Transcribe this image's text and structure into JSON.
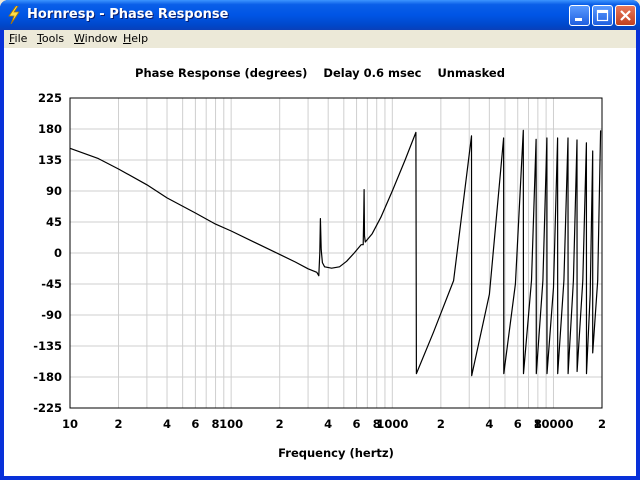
{
  "window": {
    "title": "Hornresp - Phase Response",
    "icon": "lightning-bolt-icon"
  },
  "menu": {
    "items": [
      {
        "label": "File",
        "accel": "F",
        "rest": "ile"
      },
      {
        "label": "Tools",
        "accel": "T",
        "rest": "ools"
      },
      {
        "label": "Window",
        "accel": "W",
        "rest": "indow"
      },
      {
        "label": "Help",
        "accel": "H",
        "rest": "elp"
      }
    ]
  },
  "chart_data": {
    "type": "line",
    "title": "Phase Response (degrees)    Delay 0.6 msec    Unmasked",
    "xlabel": "Frequency (hertz)",
    "ylabel": "",
    "x_scale": "log",
    "xlim": [
      10,
      20000
    ],
    "ylim": [
      -225,
      225
    ],
    "grid": true,
    "y_ticks": [
      "225",
      "180",
      "135",
      "90",
      "45",
      "0",
      "-45",
      "-90",
      "-135",
      "-180",
      "-225"
    ],
    "x_tick_labels": [
      {
        "value": 10,
        "label": "10"
      },
      {
        "value": 20,
        "label": "2"
      },
      {
        "value": 40,
        "label": "4"
      },
      {
        "value": 60,
        "label": "6"
      },
      {
        "value": 80,
        "label": "8"
      },
      {
        "value": 100,
        "label": "100"
      },
      {
        "value": 200,
        "label": "2"
      },
      {
        "value": 400,
        "label": "4"
      },
      {
        "value": 600,
        "label": "6"
      },
      {
        "value": 800,
        "label": "8"
      },
      {
        "value": 1000,
        "label": "1000"
      },
      {
        "value": 2000,
        "label": "2"
      },
      {
        "value": 4000,
        "label": "4"
      },
      {
        "value": 6000,
        "label": "6"
      },
      {
        "value": 8000,
        "label": "8"
      },
      {
        "value": 10000,
        "label": "10000"
      },
      {
        "value": 20000,
        "label": "2"
      }
    ],
    "series": [
      {
        "color": "#000000",
        "points": [
          [
            10,
            152
          ],
          [
            15,
            137
          ],
          [
            20,
            122
          ],
          [
            30,
            99
          ],
          [
            40,
            80
          ],
          [
            60,
            58
          ],
          [
            80,
            42
          ],
          [
            100,
            32
          ],
          [
            150,
            12
          ],
          [
            200,
            -2
          ],
          [
            250,
            -13
          ],
          [
            300,
            -23
          ],
          [
            340,
            -28
          ],
          [
            350,
            -33
          ],
          [
            355,
            0
          ],
          [
            358,
            50
          ],
          [
            362,
            5
          ],
          [
            368,
            -14
          ],
          [
            380,
            -20
          ],
          [
            420,
            -22
          ],
          [
            470,
            -20
          ],
          [
            520,
            -12
          ],
          [
            580,
            0
          ],
          [
            640,
            12
          ],
          [
            660,
            12
          ],
          [
            665,
            60
          ],
          [
            668,
            92
          ],
          [
            672,
            25
          ],
          [
            680,
            16
          ],
          [
            750,
            28
          ],
          [
            850,
            52
          ],
          [
            1000,
            90
          ],
          [
            1200,
            135
          ],
          [
            1400,
            175
          ],
          [
            1410,
            -175
          ],
          [
            1800,
            -115
          ],
          [
            2400,
            -40
          ],
          [
            3100,
            170
          ],
          [
            3110,
            -178
          ],
          [
            4000,
            -60
          ],
          [
            4900,
            167
          ],
          [
            4920,
            -175
          ],
          [
            5800,
            -45
          ],
          [
            6500,
            178
          ],
          [
            6520,
            -175
          ],
          [
            7300,
            -40
          ],
          [
            7800,
            165
          ],
          [
            7820,
            -175
          ],
          [
            8600,
            -40
          ],
          [
            9100,
            167
          ],
          [
            9120,
            -175
          ],
          [
            10000,
            -50
          ],
          [
            10600,
            167
          ],
          [
            10620,
            -175
          ],
          [
            11600,
            -40
          ],
          [
            12300,
            167
          ],
          [
            12320,
            -175
          ],
          [
            13300,
            -40
          ],
          [
            14000,
            164
          ],
          [
            14020,
            -172
          ],
          [
            15200,
            -40
          ],
          [
            16000,
            160
          ],
          [
            16020,
            -175
          ],
          [
            16900,
            -60
          ],
          [
            17500,
            148
          ],
          [
            17520,
            -145
          ],
          [
            18800,
            -40
          ],
          [
            19600,
            178
          ]
        ]
      }
    ]
  }
}
